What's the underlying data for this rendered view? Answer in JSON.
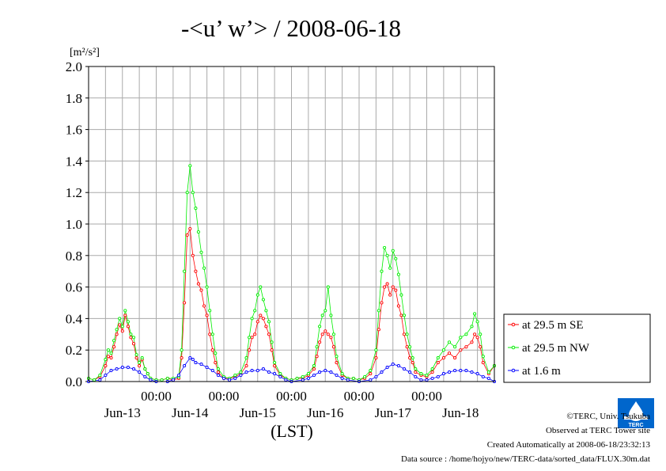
{
  "title": "-<u’ w’> / 2008-06-18",
  "units": "[m²/s²]",
  "footer": {
    "copyright": "©TERC, Univ. Tsukuba",
    "site": "Observed at TERC Tower site",
    "created": "Created Automatically at 2008-06-18/23:32:13",
    "source": "Data source : /home/hojyo/new/TERC-data/sorted_data/FLUX.30m.dat"
  },
  "logo_text": "TERC",
  "chart_data": {
    "type": "line",
    "title": "-<u’ w’> / 2008-06-18",
    "ylabel": "[m²/s²]",
    "xlabel": "(LST)",
    "ylim": [
      0,
      2.0
    ],
    "xlim": [
      0,
      144
    ],
    "yticks": [
      "0.0",
      "0.2",
      "0.4",
      "0.6",
      "0.8",
      "1.0",
      "1.2",
      "1.4",
      "1.6",
      "1.8",
      "2.0"
    ],
    "xtick_time_labels": [
      "00:00",
      "00:00",
      "00:00",
      "00:00",
      "00:00"
    ],
    "xtick_time_positions": [
      24,
      48,
      72,
      96,
      120
    ],
    "day_labels": [
      "Jun-13",
      "Jun-14",
      "Jun-15",
      "Jun-16",
      "Jun-17",
      "Jun-18"
    ],
    "day_label_positions": [
      12,
      36,
      60,
      84,
      108,
      132
    ],
    "grid": true,
    "legend_position": "right",
    "colors": {
      "se": "#ff0000",
      "nw": "#00ee00",
      "low": "#0000ff"
    },
    "series": [
      {
        "name": "at 29.5 m SE",
        "color": "#ff0000",
        "points": [
          [
            0,
            0.02
          ],
          [
            2,
            0.01
          ],
          [
            4,
            0.03
          ],
          [
            6,
            0.1
          ],
          [
            7,
            0.16
          ],
          [
            8,
            0.15
          ],
          [
            9,
            0.22
          ],
          [
            10,
            0.3
          ],
          [
            11,
            0.36
          ],
          [
            12,
            0.32
          ],
          [
            13,
            0.42
          ],
          [
            14,
            0.35
          ],
          [
            15,
            0.28
          ],
          [
            16,
            0.24
          ],
          [
            17,
            0.15
          ],
          [
            18,
            0.1
          ],
          [
            19,
            0.14
          ],
          [
            20,
            0.08
          ],
          [
            21,
            0.05
          ],
          [
            22,
            0.02
          ],
          [
            24,
            0.01
          ],
          [
            26,
            0.01
          ],
          [
            28,
            0.02
          ],
          [
            30,
            0.01
          ],
          [
            32,
            0.02
          ],
          [
            33,
            0.15
          ],
          [
            34,
            0.5
          ],
          [
            35,
            0.93
          ],
          [
            36,
            0.97
          ],
          [
            37,
            0.8
          ],
          [
            38,
            0.7
          ],
          [
            39,
            0.62
          ],
          [
            40,
            0.58
          ],
          [
            41,
            0.48
          ],
          [
            42,
            0.42
          ],
          [
            43,
            0.3
          ],
          [
            44,
            0.2
          ],
          [
            45,
            0.12
          ],
          [
            46,
            0.06
          ],
          [
            48,
            0.02
          ],
          [
            50,
            0.02
          ],
          [
            52,
            0.03
          ],
          [
            54,
            0.05
          ],
          [
            56,
            0.1
          ],
          [
            57,
            0.2
          ],
          [
            58,
            0.28
          ],
          [
            59,
            0.3
          ],
          [
            60,
            0.38
          ],
          [
            61,
            0.42
          ],
          [
            62,
            0.4
          ],
          [
            63,
            0.35
          ],
          [
            64,
            0.3
          ],
          [
            65,
            0.2
          ],
          [
            66,
            0.1
          ],
          [
            68,
            0.04
          ],
          [
            70,
            0.02
          ],
          [
            72,
            0.01
          ],
          [
            74,
            0.02
          ],
          [
            76,
            0.02
          ],
          [
            78,
            0.04
          ],
          [
            80,
            0.08
          ],
          [
            81,
            0.16
          ],
          [
            82,
            0.25
          ],
          [
            83,
            0.3
          ],
          [
            84,
            0.32
          ],
          [
            85,
            0.3
          ],
          [
            86,
            0.28
          ],
          [
            87,
            0.22
          ],
          [
            88,
            0.12
          ],
          [
            90,
            0.04
          ],
          [
            92,
            0.02
          ],
          [
            94,
            0.02
          ],
          [
            96,
            0.01
          ],
          [
            98,
            0.02
          ],
          [
            100,
            0.05
          ],
          [
            102,
            0.15
          ],
          [
            103,
            0.33
          ],
          [
            104,
            0.5
          ],
          [
            105,
            0.6
          ],
          [
            106,
            0.62
          ],
          [
            107,
            0.55
          ],
          [
            108,
            0.6
          ],
          [
            109,
            0.58
          ],
          [
            110,
            0.48
          ],
          [
            111,
            0.42
          ],
          [
            112,
            0.3
          ],
          [
            113,
            0.22
          ],
          [
            114,
            0.15
          ],
          [
            115,
            0.12
          ],
          [
            116,
            0.06
          ],
          [
            118,
            0.04
          ],
          [
            120,
            0.03
          ],
          [
            122,
            0.06
          ],
          [
            124,
            0.12
          ],
          [
            126,
            0.15
          ],
          [
            128,
            0.18
          ],
          [
            130,
            0.15
          ],
          [
            132,
            0.2
          ],
          [
            134,
            0.22
          ],
          [
            136,
            0.25
          ],
          [
            137,
            0.3
          ],
          [
            138,
            0.28
          ],
          [
            139,
            0.22
          ],
          [
            140,
            0.12
          ],
          [
            142,
            0.05
          ],
          [
            144,
            0.1
          ]
        ]
      },
      {
        "name": "at 29.5 m NW",
        "color": "#00ee00",
        "points": [
          [
            0,
            0.02
          ],
          [
            2,
            0.01
          ],
          [
            4,
            0.04
          ],
          [
            6,
            0.14
          ],
          [
            7,
            0.2
          ],
          [
            8,
            0.18
          ],
          [
            9,
            0.26
          ],
          [
            10,
            0.33
          ],
          [
            11,
            0.4
          ],
          [
            12,
            0.35
          ],
          [
            13,
            0.45
          ],
          [
            14,
            0.38
          ],
          [
            15,
            0.3
          ],
          [
            16,
            0.28
          ],
          [
            17,
            0.17
          ],
          [
            18,
            0.12
          ],
          [
            19,
            0.15
          ],
          [
            20,
            0.08
          ],
          [
            21,
            0.05
          ],
          [
            22,
            0.02
          ],
          [
            24,
            0.01
          ],
          [
            26,
            0.01
          ],
          [
            28,
            0.02
          ],
          [
            30,
            0.02
          ],
          [
            32,
            0.03
          ],
          [
            33,
            0.2
          ],
          [
            34,
            0.7
          ],
          [
            35,
            1.2
          ],
          [
            36,
            1.37
          ],
          [
            37,
            1.2
          ],
          [
            38,
            1.1
          ],
          [
            39,
            0.95
          ],
          [
            40,
            0.82
          ],
          [
            41,
            0.72
          ],
          [
            42,
            0.6
          ],
          [
            43,
            0.45
          ],
          [
            44,
            0.3
          ],
          [
            45,
            0.18
          ],
          [
            46,
            0.08
          ],
          [
            48,
            0.03
          ],
          [
            50,
            0.02
          ],
          [
            52,
            0.04
          ],
          [
            54,
            0.06
          ],
          [
            56,
            0.15
          ],
          [
            57,
            0.28
          ],
          [
            58,
            0.4
          ],
          [
            59,
            0.45
          ],
          [
            60,
            0.55
          ],
          [
            61,
            0.6
          ],
          [
            62,
            0.52
          ],
          [
            63,
            0.45
          ],
          [
            64,
            0.38
          ],
          [
            65,
            0.25
          ],
          [
            66,
            0.12
          ],
          [
            68,
            0.05
          ],
          [
            70,
            0.02
          ],
          [
            72,
            0.01
          ],
          [
            74,
            0.02
          ],
          [
            76,
            0.03
          ],
          [
            78,
            0.05
          ],
          [
            80,
            0.1
          ],
          [
            81,
            0.22
          ],
          [
            82,
            0.35
          ],
          [
            83,
            0.42
          ],
          [
            84,
            0.45
          ],
          [
            85,
            0.6
          ],
          [
            86,
            0.42
          ],
          [
            87,
            0.3
          ],
          [
            88,
            0.16
          ],
          [
            90,
            0.05
          ],
          [
            92,
            0.02
          ],
          [
            94,
            0.02
          ],
          [
            96,
            0.01
          ],
          [
            98,
            0.03
          ],
          [
            100,
            0.07
          ],
          [
            102,
            0.2
          ],
          [
            103,
            0.45
          ],
          [
            104,
            0.7
          ],
          [
            105,
            0.85
          ],
          [
            106,
            0.8
          ],
          [
            107,
            0.72
          ],
          [
            108,
            0.83
          ],
          [
            109,
            0.78
          ],
          [
            110,
            0.68
          ],
          [
            111,
            0.55
          ],
          [
            112,
            0.42
          ],
          [
            113,
            0.3
          ],
          [
            114,
            0.22
          ],
          [
            115,
            0.15
          ],
          [
            116,
            0.08
          ],
          [
            118,
            0.05
          ],
          [
            120,
            0.04
          ],
          [
            122,
            0.08
          ],
          [
            124,
            0.15
          ],
          [
            126,
            0.2
          ],
          [
            128,
            0.25
          ],
          [
            130,
            0.22
          ],
          [
            132,
            0.28
          ],
          [
            134,
            0.3
          ],
          [
            136,
            0.35
          ],
          [
            137,
            0.43
          ],
          [
            138,
            0.38
          ],
          [
            139,
            0.3
          ],
          [
            140,
            0.16
          ],
          [
            142,
            0.06
          ],
          [
            144,
            0.1
          ]
        ]
      },
      {
        "name": "at 1.6 m",
        "color": "#0000ff",
        "points": [
          [
            0,
            0.0
          ],
          [
            4,
            0.01
          ],
          [
            6,
            0.04
          ],
          [
            8,
            0.07
          ],
          [
            10,
            0.08
          ],
          [
            12,
            0.09
          ],
          [
            14,
            0.09
          ],
          [
            16,
            0.08
          ],
          [
            18,
            0.06
          ],
          [
            20,
            0.03
          ],
          [
            22,
            0.01
          ],
          [
            24,
            0.0
          ],
          [
            28,
            0.0
          ],
          [
            30,
            0.01
          ],
          [
            32,
            0.04
          ],
          [
            34,
            0.1
          ],
          [
            36,
            0.15
          ],
          [
            37,
            0.14
          ],
          [
            38,
            0.12
          ],
          [
            40,
            0.11
          ],
          [
            42,
            0.09
          ],
          [
            44,
            0.07
          ],
          [
            46,
            0.04
          ],
          [
            48,
            0.02
          ],
          [
            50,
            0.01
          ],
          [
            52,
            0.02
          ],
          [
            54,
            0.04
          ],
          [
            56,
            0.06
          ],
          [
            58,
            0.07
          ],
          [
            60,
            0.07
          ],
          [
            62,
            0.08
          ],
          [
            64,
            0.06
          ],
          [
            66,
            0.05
          ],
          [
            68,
            0.03
          ],
          [
            70,
            0.01
          ],
          [
            72,
            0.0
          ],
          [
            76,
            0.01
          ],
          [
            78,
            0.02
          ],
          [
            80,
            0.04
          ],
          [
            82,
            0.06
          ],
          [
            84,
            0.07
          ],
          [
            86,
            0.06
          ],
          [
            88,
            0.04
          ],
          [
            90,
            0.02
          ],
          [
            92,
            0.01
          ],
          [
            96,
            0.0
          ],
          [
            100,
            0.01
          ],
          [
            102,
            0.03
          ],
          [
            104,
            0.06
          ],
          [
            106,
            0.09
          ],
          [
            108,
            0.11
          ],
          [
            110,
            0.1
          ],
          [
            112,
            0.08
          ],
          [
            114,
            0.06
          ],
          [
            116,
            0.03
          ],
          [
            118,
            0.01
          ],
          [
            120,
            0.01
          ],
          [
            122,
            0.02
          ],
          [
            124,
            0.03
          ],
          [
            126,
            0.05
          ],
          [
            128,
            0.06
          ],
          [
            130,
            0.07
          ],
          [
            132,
            0.07
          ],
          [
            134,
            0.07
          ],
          [
            136,
            0.06
          ],
          [
            138,
            0.05
          ],
          [
            140,
            0.03
          ],
          [
            142,
            0.02
          ],
          [
            144,
            0.0
          ]
        ]
      }
    ]
  }
}
